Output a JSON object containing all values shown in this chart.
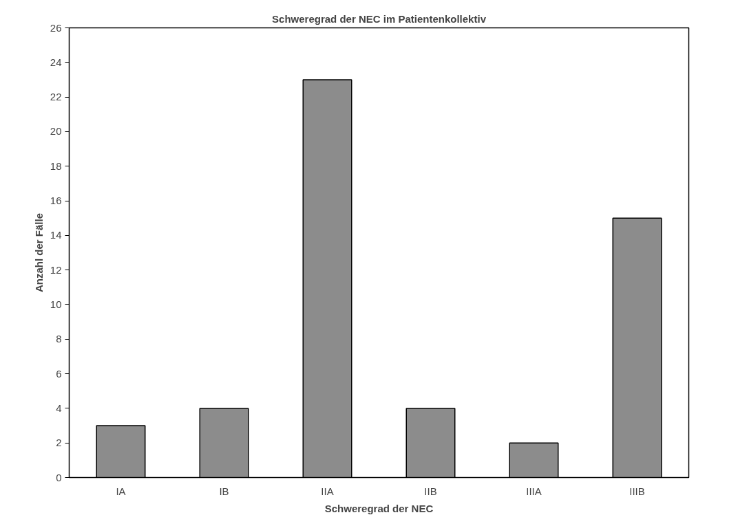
{
  "chart_data": {
    "type": "bar",
    "title": "Schweregrad der NEC im Patientenkollektiv",
    "xlabel": "Schweregrad der NEC",
    "ylabel": "Anzahl der Fälle",
    "categories": [
      "IA",
      "IB",
      "IIA",
      "IIB",
      "IIIA",
      "IIIB"
    ],
    "values": [
      3,
      4,
      23,
      4,
      2,
      15
    ],
    "color": "#8c8c8c",
    "ylim": [
      0,
      26
    ],
    "yticks": [
      0,
      2,
      4,
      6,
      8,
      10,
      12,
      14,
      16,
      18,
      20,
      22,
      24,
      26
    ],
    "grid": false
  }
}
